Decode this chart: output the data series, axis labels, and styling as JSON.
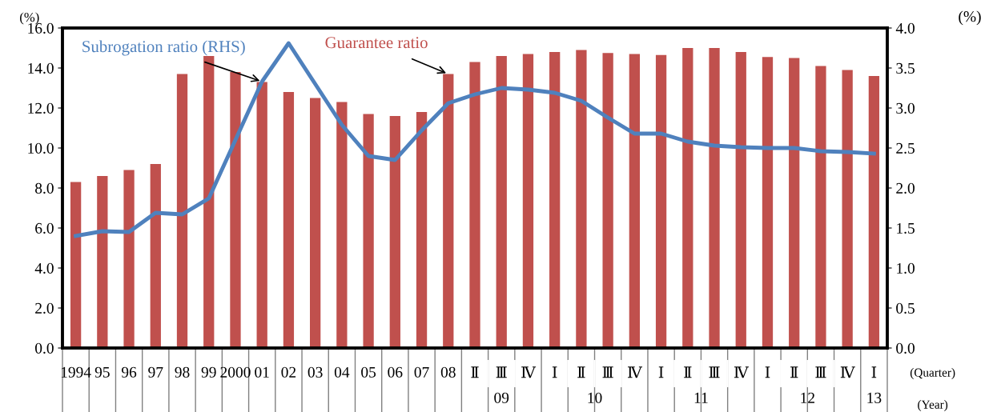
{
  "chart_data": {
    "type": "bar",
    "categories": [
      "1994",
      "95",
      "96",
      "97",
      "98",
      "99",
      "2000",
      "01",
      "02",
      "03",
      "04",
      "05",
      "06",
      "07",
      "08",
      "Ⅱ",
      "Ⅲ",
      "Ⅳ",
      "Ⅰ",
      "Ⅱ",
      "Ⅲ",
      "Ⅳ",
      "Ⅰ",
      "Ⅱ",
      "Ⅲ",
      "Ⅳ",
      "Ⅰ",
      "Ⅱ",
      "Ⅲ",
      "Ⅳ",
      "Ⅰ"
    ],
    "series": [
      {
        "name": "Guarantee ratio",
        "color": "#c0504d",
        "values": [
          8.3,
          8.6,
          8.9,
          9.2,
          13.7,
          14.6,
          13.8,
          13.3,
          12.8,
          12.5,
          12.3,
          11.7,
          11.6,
          11.8,
          13.7,
          14.3,
          14.6,
          14.7,
          14.8,
          14.9,
          14.75,
          14.7,
          14.65,
          15.0,
          15.0,
          14.8,
          14.55,
          14.5,
          14.1,
          13.9,
          13.6
        ]
      },
      {
        "name": "Subrogation ratio (RHS)",
        "type": "line",
        "axis": "y2",
        "color": "#4f81bd",
        "values": [
          1.4,
          1.46,
          1.45,
          1.69,
          1.67,
          1.87,
          2.6,
          3.33,
          3.81,
          3.3,
          2.79,
          2.4,
          2.35,
          2.72,
          3.06,
          3.17,
          3.25,
          3.23,
          3.19,
          3.09,
          2.88,
          2.68,
          2.68,
          2.58,
          2.53,
          2.51,
          2.5,
          2.5,
          2.46,
          2.45,
          2.43
        ]
      }
    ],
    "ylabel": "(%)",
    "y2label": "(%)",
    "ylim": [
      0,
      16
    ],
    "yticks": [
      {
        "value": 0,
        "label": "0.0"
      },
      {
        "value": 2,
        "label": "2.0"
      },
      {
        "value": 4,
        "label": "4.0"
      },
      {
        "value": 6,
        "label": "6.0"
      },
      {
        "value": 8,
        "label": "8.0"
      },
      {
        "value": 10,
        "label": "10.0"
      },
      {
        "value": 12,
        "label": "12.0"
      },
      {
        "value": 14,
        "label": "14.0"
      },
      {
        "value": 16,
        "label": "16.0"
      }
    ],
    "y2lim": [
      0,
      4
    ],
    "y2ticks": [
      {
        "value": 0,
        "label": "0.0"
      },
      {
        "value": 0.5,
        "label": "0.5"
      },
      {
        "value": 1,
        "label": "1.0"
      },
      {
        "value": 1.5,
        "label": "1.5"
      },
      {
        "value": 2,
        "label": "2.0"
      },
      {
        "value": 2.5,
        "label": "2.5"
      },
      {
        "value": 3,
        "label": "3.0"
      },
      {
        "value": 3.5,
        "label": "3.5"
      },
      {
        "value": 4,
        "label": "4.0"
      }
    ],
    "annotations": [
      "09",
      "10",
      "11",
      "12",
      "13",
      "(Quarter)",
      "(Year)"
    ],
    "grid": false,
    "legend": false,
    "marker": "none",
    "line_style": "solid"
  }
}
